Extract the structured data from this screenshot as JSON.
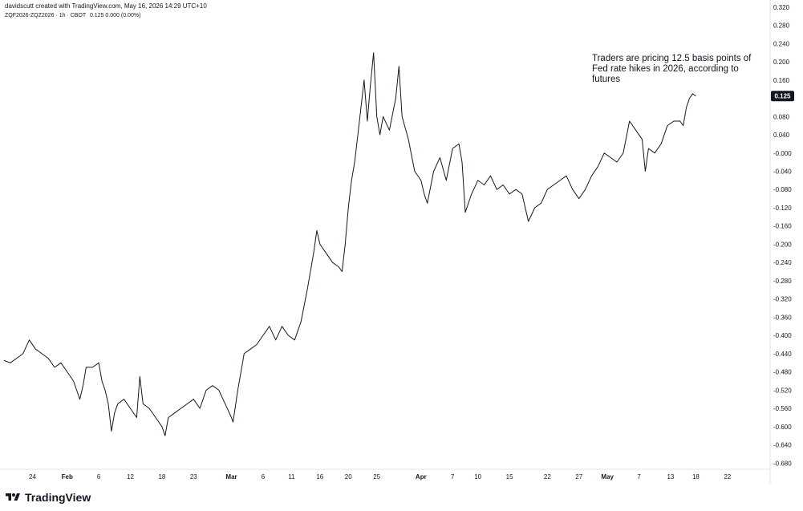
{
  "header": {
    "credit": "davidscutt created with TradingView.com, May 16, 2026 14:29 UTC+10"
  },
  "symbol_line": {
    "label": "ZQF2026-ZQZ2026 · 1h · CBOT",
    "values": "0.125  0.000 (0.00%)"
  },
  "logo": {
    "text": "TradingView",
    "icon": "tradingview-logo-icon"
  },
  "colors": {
    "line": "#131722",
    "badge_bg": "#131722",
    "badge_text": "#ffffff",
    "axis": "#e0e3eb"
  },
  "chart_data": {
    "type": "line",
    "title": "",
    "annotation": "Traders are pricing 12.5 basis points of Fed rate hikes in 2026, according to futures",
    "last_value_label": "0.125",
    "y_axis": {
      "side": "right",
      "ticks": [
        "0.320",
        "0.280",
        "0.240",
        "0.200",
        "0.160",
        "0.120",
        "0.080",
        "0.040",
        "-0.000",
        "-0.040",
        "-0.080",
        "-0.120",
        "-0.160",
        "-0.200",
        "-0.240",
        "-0.280",
        "-0.320",
        "-0.360",
        "-0.400",
        "-0.440",
        "-0.480",
        "-0.520",
        "-0.560",
        "-0.600",
        "-0.640",
        "-0.680"
      ],
      "range": [
        -0.69,
        0.325
      ]
    },
    "x_axis": {
      "ticks": [
        {
          "label": "24",
          "t": 0.9,
          "bold": false
        },
        {
          "label": "Feb",
          "t": 2.0,
          "bold": true
        },
        {
          "label": "6",
          "t": 3.0,
          "bold": false
        },
        {
          "label": "12",
          "t": 4.0,
          "bold": false
        },
        {
          "label": "18",
          "t": 5.0,
          "bold": false
        },
        {
          "label": "23",
          "t": 6.0,
          "bold": false
        },
        {
          "label": "Mar",
          "t": 7.2,
          "bold": true
        },
        {
          "label": "6",
          "t": 8.2,
          "bold": false
        },
        {
          "label": "11",
          "t": 9.1,
          "bold": false
        },
        {
          "label": "16",
          "t": 10.0,
          "bold": false
        },
        {
          "label": "20",
          "t": 10.9,
          "bold": false
        },
        {
          "label": "25",
          "t": 11.8,
          "bold": false
        },
        {
          "label": "Apr",
          "t": 13.2,
          "bold": true
        },
        {
          "label": "7",
          "t": 14.2,
          "bold": false
        },
        {
          "label": "10",
          "t": 15.0,
          "bold": false
        },
        {
          "label": "15",
          "t": 16.0,
          "bold": false
        },
        {
          "label": "22",
          "t": 17.2,
          "bold": false
        },
        {
          "label": "27",
          "t": 18.2,
          "bold": false
        },
        {
          "label": "May",
          "t": 19.1,
          "bold": true
        },
        {
          "label": "7",
          "t": 20.1,
          "bold": false
        },
        {
          "label": "13",
          "t": 21.1,
          "bold": false
        },
        {
          "label": "18",
          "t": 21.9,
          "bold": false
        },
        {
          "label": "22",
          "t": 22.9,
          "bold": false
        }
      ],
      "range": [
        0,
        24.2
      ]
    },
    "series": [
      {
        "points": [
          [
            0.0,
            -0.455
          ],
          [
            0.2,
            -0.46
          ],
          [
            0.4,
            -0.45
          ],
          [
            0.6,
            -0.44
          ],
          [
            0.8,
            -0.41
          ],
          [
            1.0,
            -0.43
          ],
          [
            1.2,
            -0.44
          ],
          [
            1.4,
            -0.45
          ],
          [
            1.6,
            -0.47
          ],
          [
            1.8,
            -0.46
          ],
          [
            2.0,
            -0.48
          ],
          [
            2.2,
            -0.5
          ],
          [
            2.4,
            -0.54
          ],
          [
            2.5,
            -0.51
          ],
          [
            2.6,
            -0.47
          ],
          [
            2.8,
            -0.47
          ],
          [
            3.0,
            -0.46
          ],
          [
            3.1,
            -0.5
          ],
          [
            3.2,
            -0.52
          ],
          [
            3.3,
            -0.55
          ],
          [
            3.4,
            -0.61
          ],
          [
            3.5,
            -0.57
          ],
          [
            3.6,
            -0.55
          ],
          [
            3.8,
            -0.54
          ],
          [
            4.0,
            -0.56
          ],
          [
            4.2,
            -0.58
          ],
          [
            4.3,
            -0.49
          ],
          [
            4.4,
            -0.55
          ],
          [
            4.6,
            -0.56
          ],
          [
            4.8,
            -0.58
          ],
          [
            5.0,
            -0.6
          ],
          [
            5.1,
            -0.62
          ],
          [
            5.2,
            -0.58
          ],
          [
            5.4,
            -0.57
          ],
          [
            5.6,
            -0.56
          ],
          [
            5.8,
            -0.55
          ],
          [
            6.0,
            -0.54
          ],
          [
            6.2,
            -0.56
          ],
          [
            6.4,
            -0.52
          ],
          [
            6.6,
            -0.51
          ],
          [
            6.8,
            -0.52
          ],
          [
            7.0,
            -0.55
          ],
          [
            7.2,
            -0.58
          ],
          [
            7.25,
            -0.59
          ],
          [
            7.4,
            -0.52
          ],
          [
            7.5,
            -0.48
          ],
          [
            7.6,
            -0.44
          ],
          [
            7.8,
            -0.43
          ],
          [
            8.0,
            -0.42
          ],
          [
            8.2,
            -0.4
          ],
          [
            8.4,
            -0.38
          ],
          [
            8.6,
            -0.41
          ],
          [
            8.8,
            -0.38
          ],
          [
            9.0,
            -0.4
          ],
          [
            9.2,
            -0.41
          ],
          [
            9.4,
            -0.37
          ],
          [
            9.6,
            -0.3
          ],
          [
            9.8,
            -0.22
          ],
          [
            9.9,
            -0.17
          ],
          [
            10.0,
            -0.2
          ],
          [
            10.2,
            -0.22
          ],
          [
            10.4,
            -0.24
          ],
          [
            10.6,
            -0.25
          ],
          [
            10.7,
            -0.26
          ],
          [
            10.8,
            -0.2
          ],
          [
            10.9,
            -0.12
          ],
          [
            11.0,
            -0.06
          ],
          [
            11.1,
            -0.02
          ],
          [
            11.2,
            0.04
          ],
          [
            11.3,
            0.1
          ],
          [
            11.4,
            0.16
          ],
          [
            11.5,
            0.07
          ],
          [
            11.6,
            0.15
          ],
          [
            11.7,
            0.22
          ],
          [
            11.8,
            0.08
          ],
          [
            11.9,
            0.04
          ],
          [
            12.0,
            0.08
          ],
          [
            12.2,
            0.05
          ],
          [
            12.4,
            0.12
          ],
          [
            12.5,
            0.19
          ],
          [
            12.6,
            0.08
          ],
          [
            12.8,
            0.03
          ],
          [
            13.0,
            -0.04
          ],
          [
            13.2,
            -0.06
          ],
          [
            13.3,
            -0.09
          ],
          [
            13.4,
            -0.11
          ],
          [
            13.6,
            -0.04
          ],
          [
            13.8,
            -0.01
          ],
          [
            14.0,
            -0.06
          ],
          [
            14.2,
            0.01
          ],
          [
            14.4,
            0.02
          ],
          [
            14.5,
            -0.02
          ],
          [
            14.6,
            -0.13
          ],
          [
            14.8,
            -0.09
          ],
          [
            15.0,
            -0.06
          ],
          [
            15.2,
            -0.07
          ],
          [
            15.4,
            -0.05
          ],
          [
            15.6,
            -0.08
          ],
          [
            15.8,
            -0.07
          ],
          [
            16.0,
            -0.09
          ],
          [
            16.2,
            -0.08
          ],
          [
            16.4,
            -0.09
          ],
          [
            16.6,
            -0.15
          ],
          [
            16.8,
            -0.12
          ],
          [
            17.0,
            -0.11
          ],
          [
            17.2,
            -0.08
          ],
          [
            17.4,
            -0.07
          ],
          [
            17.6,
            -0.06
          ],
          [
            17.8,
            -0.05
          ],
          [
            18.0,
            -0.08
          ],
          [
            18.2,
            -0.1
          ],
          [
            18.4,
            -0.08
          ],
          [
            18.6,
            -0.05
          ],
          [
            18.8,
            -0.03
          ],
          [
            19.0,
            0.0
          ],
          [
            19.2,
            -0.01
          ],
          [
            19.4,
            -0.02
          ],
          [
            19.6,
            0.0
          ],
          [
            19.8,
            0.07
          ],
          [
            20.0,
            0.05
          ],
          [
            20.2,
            0.03
          ],
          [
            20.3,
            -0.04
          ],
          [
            20.4,
            0.01
          ],
          [
            20.6,
            0.0
          ],
          [
            20.8,
            0.02
          ],
          [
            21.0,
            0.06
          ],
          [
            21.2,
            0.07
          ],
          [
            21.4,
            0.07
          ],
          [
            21.5,
            0.06
          ],
          [
            21.6,
            0.1
          ],
          [
            21.7,
            0.12
          ],
          [
            21.8,
            0.13
          ],
          [
            21.9,
            0.125
          ]
        ]
      }
    ]
  }
}
